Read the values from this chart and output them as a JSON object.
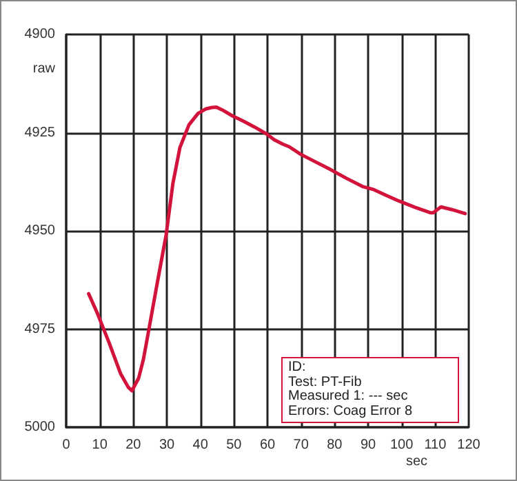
{
  "chart_data": {
    "type": "line",
    "xlabel": "sec",
    "ylabel": "raw",
    "x": [
      6.7,
      9.4,
      12.8,
      16.2,
      18.5,
      19.6,
      21.6,
      23,
      24.4,
      27,
      29.8,
      31.8,
      33.9,
      36.6,
      39.3,
      41.5,
      43.4,
      44.8,
      46.5,
      49.5,
      52.9,
      56,
      59.7,
      62,
      64.5,
      66.5,
      69.9,
      74,
      78.8,
      83.5,
      88.3,
      91.7,
      95.5,
      99.2,
      104,
      108.7,
      109.4,
      111.7,
      115,
      118.9
    ],
    "series": [
      {
        "color": "#d2143c",
        "values": [
          4966,
          4971.2,
          4978.5,
          4986.3,
          4989.8,
          4990.7,
          4987.5,
          4982.8,
          4976.3,
          4964,
          4951,
          4938,
          4928.8,
          4923,
          4920.1,
          4919,
          4918.6,
          4918.5,
          4919.2,
          4920.7,
          4922.1,
          4923.5,
          4925.3,
          4926.8,
          4927.9,
          4928.6,
          4930.5,
          4932.3,
          4934.4,
          4936.6,
          4938.7,
          4939.5,
          4941,
          4942.4,
          4944,
          4945.4,
          4945.4,
          4943.9,
          4944.6,
          4945.6
        ]
      }
    ],
    "xlim": [
      0,
      120
    ],
    "xticks": [
      0,
      10,
      20,
      30,
      40,
      50,
      60,
      70,
      80,
      90,
      100,
      110,
      120
    ],
    "ylim": [
      5000,
      4900
    ],
    "yticks": [
      4900,
      4925,
      4950,
      4975,
      5000
    ],
    "grid": true,
    "line_style": "solid",
    "annotations": [
      "ID:",
      "Test: PT-Fib",
      "Measured 1: --- sec",
      "Errors: Coag Error 8"
    ]
  }
}
